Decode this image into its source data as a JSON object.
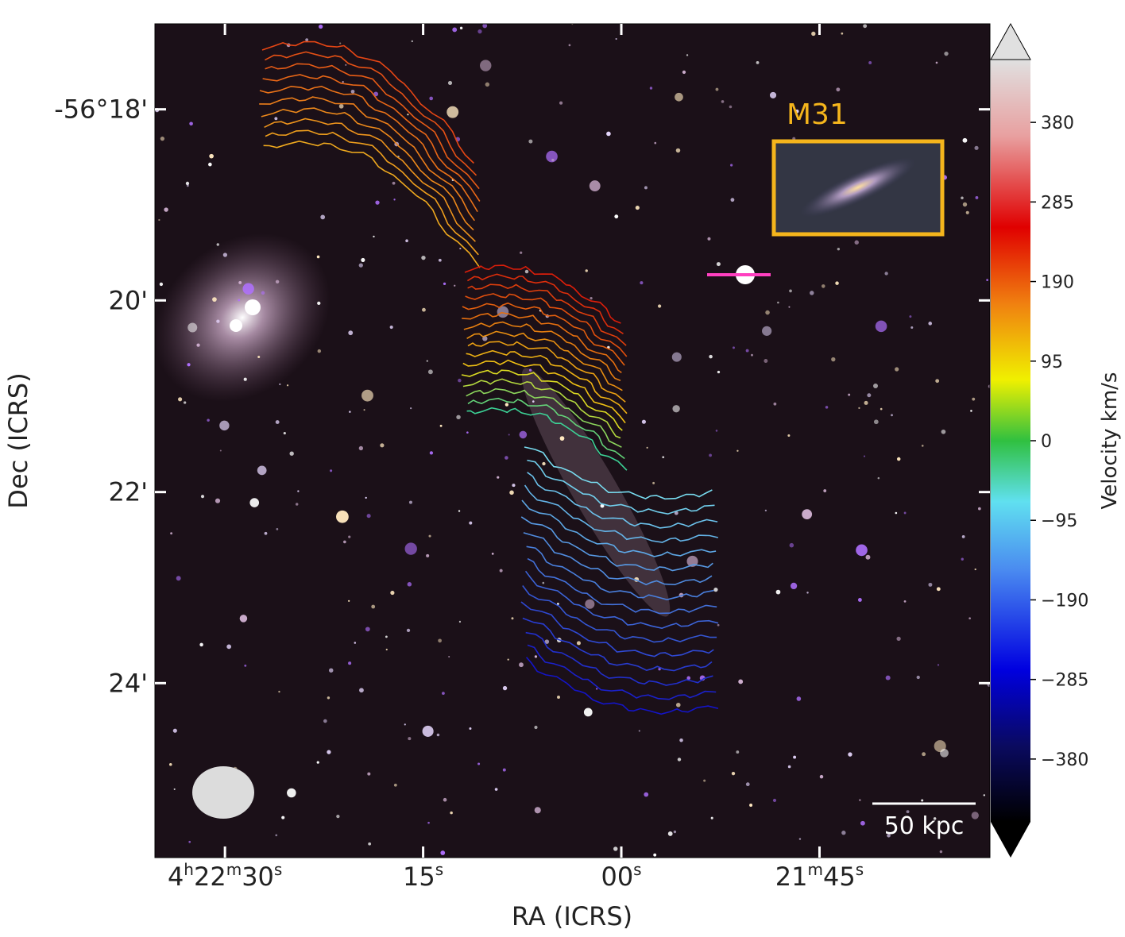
{
  "chart_data": {
    "type": "image",
    "xlabel": "RA (ICRS)",
    "ylabel": "Dec (ICRS)",
    "xlim": [
      15755.3,
      15692.1
    ],
    "xticks": [
      {
        "value": 15750,
        "label": [
          "4",
          "h",
          "22",
          "m",
          "30",
          "s"
        ]
      },
      {
        "value": 15735,
        "label": [
          "15",
          "s"
        ]
      },
      {
        "value": 15720,
        "label": [
          "00",
          "s"
        ]
      },
      {
        "value": 15705,
        "label": [
          "21",
          "m",
          "45",
          "s"
        ]
      }
    ],
    "ylim": [
      -56.4304,
      -56.2851
    ],
    "yticks": [
      {
        "value": -56.3,
        "label": "-56°18'"
      },
      {
        "value": -56.3333,
        "label": "20'"
      },
      {
        "value": -56.3667,
        "label": "22'"
      },
      {
        "value": -56.4,
        "label": "24'"
      }
    ],
    "colorbar": {
      "label": "Velocity km/s",
      "lim": [
        -455,
        455
      ],
      "ticks": [
        380,
        285,
        190,
        95,
        0,
        {
          "value": -95,
          "label": "−95"
        },
        {
          "value": -190,
          "label": "−190"
        },
        {
          "value": -285,
          "label": "−285"
        },
        {
          "value": -380,
          "label": "−380"
        }
      ]
    },
    "annotations": {
      "inset": "M31",
      "scale_bar": "50 kpc"
    }
  }
}
